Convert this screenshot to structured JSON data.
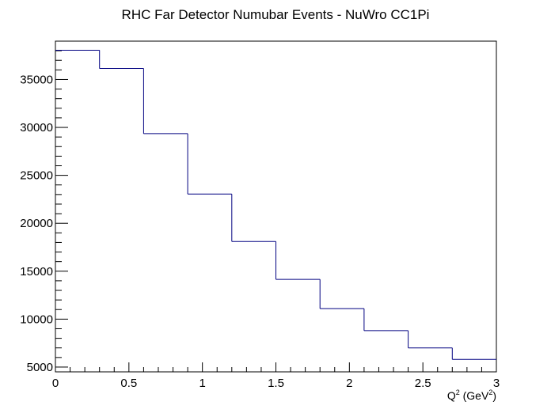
{
  "chart_data": {
    "type": "histogram",
    "title": "RHC Far Detector Numubar Events - NuWro CC1Pi",
    "xlabel": {
      "main": "Q",
      "main_sup": "2",
      "unit_open": " (GeV",
      "unit_sup": "2",
      "unit_close": ")"
    },
    "ylabel": "",
    "xlim": [
      0,
      3
    ],
    "ylim": [
      4500,
      39000
    ],
    "bin_edges": [
      0,
      0.3,
      0.6,
      0.9,
      1.2,
      1.5,
      1.8,
      2.1,
      2.4,
      2.7,
      3.0
    ],
    "values": [
      38050,
      36150,
      29350,
      23050,
      18100,
      14150,
      11100,
      8800,
      7000,
      5800
    ],
    "x_ticks": [
      "0",
      "0.5",
      "1",
      "1.5",
      "2",
      "2.5",
      "3"
    ],
    "y_ticks": [
      "5000",
      "10000",
      "15000",
      "20000",
      "25000",
      "30000",
      "35000"
    ],
    "line_color": "#000080",
    "grid": false,
    "legend": "none"
  }
}
